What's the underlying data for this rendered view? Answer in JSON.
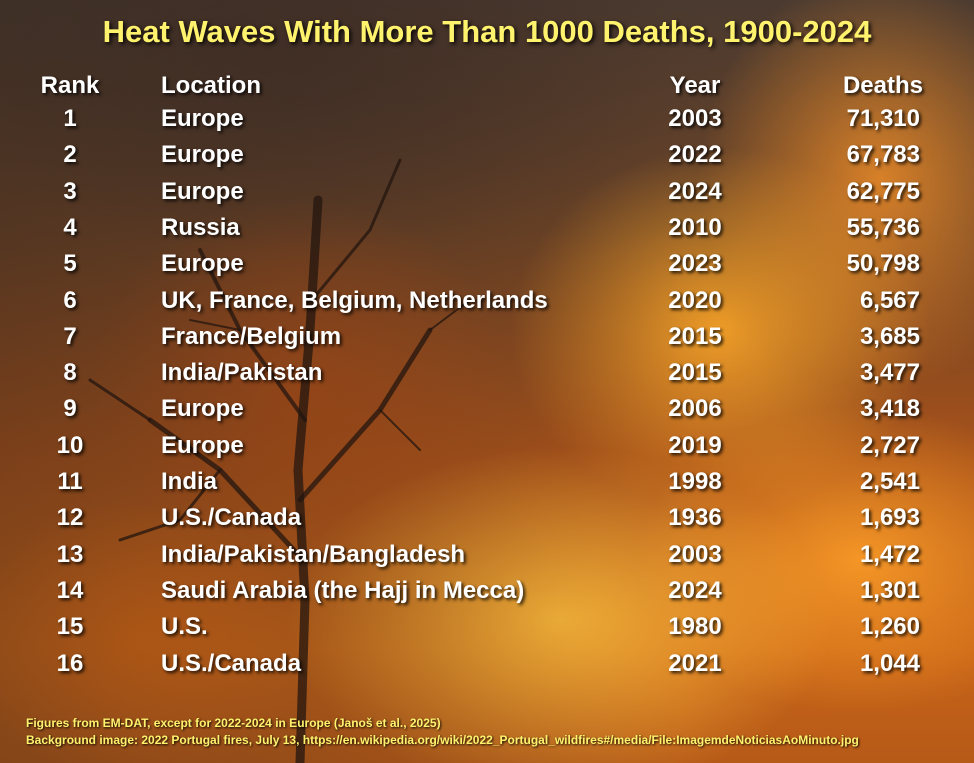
{
  "title": "Heat Waves With More Than 1000 Deaths, 1900-2024",
  "chart_data": {
    "type": "table",
    "columns": [
      "Rank",
      "Location",
      "Year",
      "Deaths"
    ],
    "rows": [
      {
        "rank": "1",
        "location": "Europe",
        "year": "2003",
        "deaths": "71,310"
      },
      {
        "rank": "2",
        "location": "Europe",
        "year": "2022",
        "deaths": "67,783"
      },
      {
        "rank": "3",
        "location": "Europe",
        "year": "2024",
        "deaths": "62,775"
      },
      {
        "rank": "4",
        "location": "Russia",
        "year": "2010",
        "deaths": "55,736"
      },
      {
        "rank": "5",
        "location": "Europe",
        "year": "2023",
        "deaths": "50,798"
      },
      {
        "rank": "6",
        "location": "UK, France, Belgium, Netherlands",
        "year": "2020",
        "deaths": "6,567"
      },
      {
        "rank": "7",
        "location": "France/Belgium",
        "year": "2015",
        "deaths": "3,685"
      },
      {
        "rank": "8",
        "location": "India/Pakistan",
        "year": "2015",
        "deaths": "3,477"
      },
      {
        "rank": "9",
        "location": "Europe",
        "year": "2006",
        "deaths": "3,418"
      },
      {
        "rank": "10",
        "location": "Europe",
        "year": "2019",
        "deaths": "2,727"
      },
      {
        "rank": "11",
        "location": "India",
        "year": "1998",
        "deaths": "2,541"
      },
      {
        "rank": "12",
        "location": "U.S./Canada",
        "year": "1936",
        "deaths": "1,693"
      },
      {
        "rank": "13",
        "location": "India/Pakistan/Bangladesh",
        "year": "2003",
        "deaths": "1,472"
      },
      {
        "rank": "14",
        "location": "Saudi Arabia (the Hajj in Mecca)",
        "year": "2024",
        "deaths": "1,301"
      },
      {
        "rank": "15",
        "location": "U.S.",
        "year": "1980",
        "deaths": "1,260"
      },
      {
        "rank": "16",
        "location": "U.S./Canada",
        "year": "2021",
        "deaths": "1,044"
      }
    ]
  },
  "footnotes": {
    "source": "Figures from EM-DAT, except for 2022-2024 in Europe (Janoš et al., 2025)",
    "background": "Background image: 2022 Portugal fires, July 13, https://en.wikipedia.org/wiki/2022_Portugal_wildfires#/media/File:ImagemdeNoticiasAoMinuto.jpg"
  },
  "colors": {
    "title": "#fff36e",
    "text": "#ffffff",
    "fire": "#e8701a"
  }
}
